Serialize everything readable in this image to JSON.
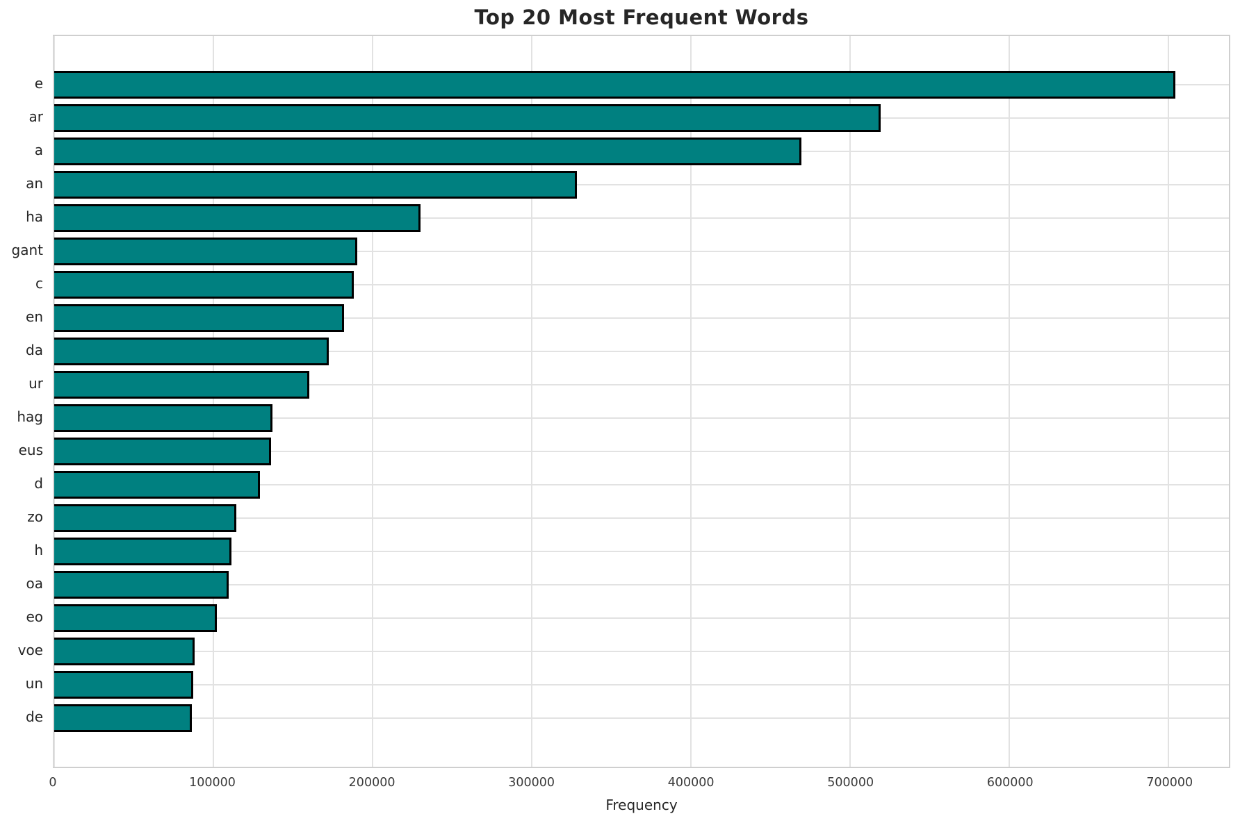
{
  "chart_data": {
    "type": "bar",
    "orientation": "horizontal",
    "title": "Top 20 Most Frequent Words",
    "xlabel": "Frequency",
    "ylabel": "",
    "categories": [
      "e",
      "ar",
      "a",
      "an",
      "ha",
      "gant",
      "c",
      "en",
      "da",
      "ur",
      "hag",
      "eus",
      "d",
      "zo",
      "h",
      "oa",
      "eo",
      "voe",
      "un",
      "de"
    ],
    "values": [
      703000,
      518000,
      468000,
      327000,
      229000,
      189000,
      187000,
      181000,
      171000,
      159000,
      136000,
      135000,
      128000,
      113000,
      110000,
      108500,
      101000,
      87000,
      86000,
      85000
    ],
    "xlim": [
      0,
      738000
    ],
    "xticks": [
      0,
      100000,
      200000,
      300000,
      400000,
      500000,
      600000,
      700000
    ],
    "xtick_labels": [
      "0",
      "100000",
      "200000",
      "300000",
      "400000",
      "500000",
      "600000",
      "700000"
    ],
    "grid": true,
    "legend": "none",
    "colors": {
      "bar_fill": "#008080",
      "bar_edge": "#000000",
      "gridline": "#e2e2e2",
      "spine": "#cfcfcf",
      "text": "#262626"
    }
  }
}
